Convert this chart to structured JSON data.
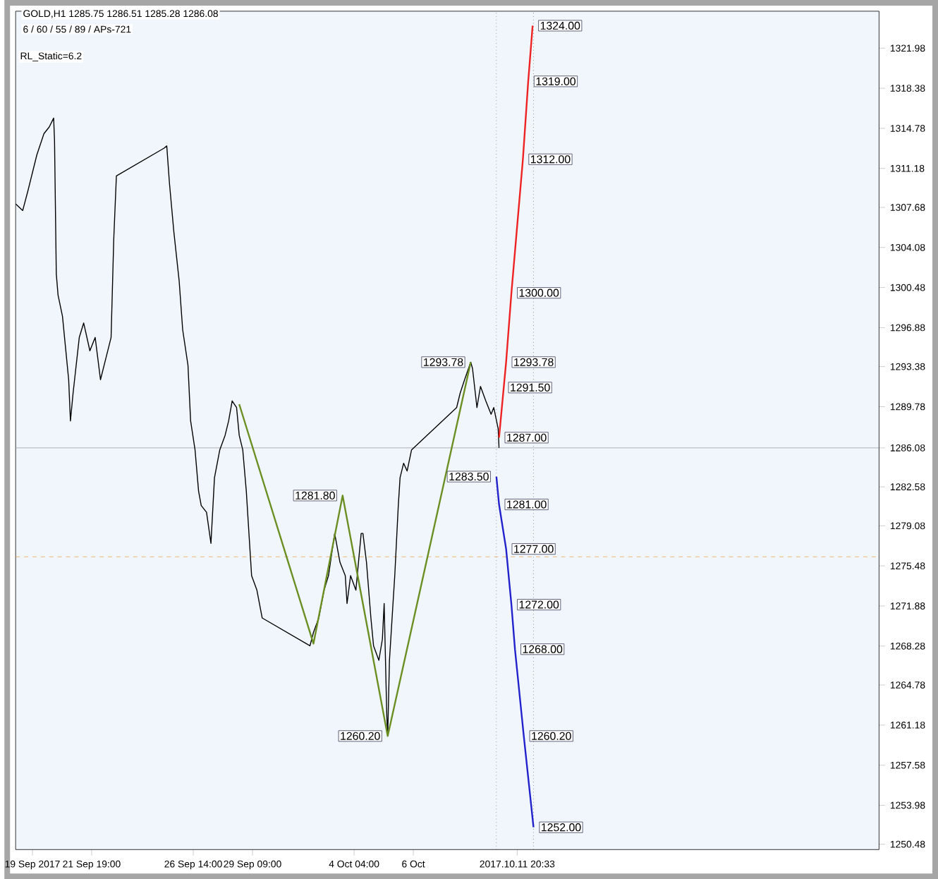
{
  "chart_data": {
    "type": "line",
    "title": "GOLD,H1 1285.75 1286.51 1285.28 1286.08",
    "subtitle": "6 / 60 / 55 / 89 / APs-721",
    "series": [
      {
        "color": "#000000",
        "x": [
          "2017-09-18T05:00",
          "2017-09-18T13:00",
          "2017-09-18T19:00",
          "2017-09-19T05:00",
          "2017-09-19T13:00",
          "2017-09-19T19:00",
          "2017-09-20T00:00",
          "2017-09-20T01:00",
          "2017-09-20T03:00",
          "2017-09-20T05:00",
          "2017-09-20T10:00",
          "2017-09-20T17:00",
          "2017-09-20T19:00",
          "2017-09-20T22:00",
          "2017-09-21T05:00",
          "2017-09-21T10:00",
          "2017-09-21T17:00",
          "2017-09-21T23:00",
          "2017-09-22T05:00",
          "2017-09-22T11:00",
          "2017-09-22T17:00",
          "2017-09-22T20:00",
          "2017-09-22T23:00",
          "2017-09-25T05:00",
          "2017-09-25T08:00",
          "2017-09-25T11:00",
          "2017-09-25T16:00",
          "2017-09-25T22:00",
          "2017-09-26T02:00",
          "2017-09-26T08:00",
          "2017-09-26T11:00",
          "2017-09-26T16:00",
          "2017-09-26T20:00",
          "2017-09-26T23:00",
          "2017-09-27T05:00",
          "2017-09-27T10:00",
          "2017-09-27T14:00",
          "2017-09-27T20:00",
          "2017-09-28T02:00",
          "2017-09-28T06:00",
          "2017-09-28T10:00",
          "2017-09-28T15:00",
          "2017-09-28T18:00",
          "2017-09-28T22:00",
          "2017-09-29T02:00",
          "2017-09-29T08:00",
          "2017-09-29T14:00",
          "2017-09-29T20:00",
          "2017-10-02T02:00",
          "2017-10-02T06:00",
          "2017-10-02T12:00",
          "2017-10-02T18:00",
          "2017-10-02T23:00",
          "2017-10-03T06:00",
          "2017-10-03T12:00",
          "2017-10-03T18:00",
          "2017-10-03T20:00",
          "2017-10-04T00:00",
          "2017-10-04T06:00",
          "2017-10-04T12:00",
          "2017-10-04T14:00",
          "2017-10-04T18:00",
          "2017-10-04T23:00",
          "2017-10-05T02:00",
          "2017-10-05T08:00",
          "2017-10-05T12:00",
          "2017-10-05T14:00",
          "2017-10-05T17:00",
          "2017-10-05T18:00",
          "2017-10-05T20:00",
          "2017-10-06T00:00",
          "2017-10-06T02:00",
          "2017-10-06T06:00",
          "2017-10-06T08:00",
          "2017-10-06T12:00",
          "2017-10-06T16:00",
          "2017-10-06T21:00",
          "2017-10-09T00:00",
          "2017-10-09T04:00",
          "2017-10-09T09:00",
          "2017-10-09T16:00",
          "2017-10-09T18:00",
          "2017-10-09T23:00",
          "2017-10-10T03:00",
          "2017-10-10T09:00",
          "2017-10-10T15:00",
          "2017-10-10T18:00",
          "2017-10-10T23:00",
          "2017-10-11T00:00"
        ],
        "values": [
          1308.0,
          1307.4,
          1309.2,
          1312.4,
          1314.3,
          1314.9,
          1315.7,
          1313.7,
          1301.7,
          1299.8,
          1297.9,
          1292.2,
          1288.5,
          1291.0,
          1296.0,
          1297.3,
          1294.8,
          1296.0,
          1292.2,
          1294.1,
          1296.0,
          1304.8,
          1310.5,
          1313.0,
          1313.2,
          1309.9,
          1305.5,
          1301.1,
          1296.7,
          1293.5,
          1288.5,
          1285.9,
          1282.2,
          1280.9,
          1280.3,
          1277.5,
          1283.4,
          1285.9,
          1287.2,
          1288.5,
          1290.3,
          1289.7,
          1287.2,
          1285.9,
          1282.2,
          1274.6,
          1273.3,
          1270.8,
          1268.3,
          1269.5,
          1270.8,
          1273.3,
          1274.6,
          1278.4,
          1275.8,
          1274.6,
          1272.1,
          1274.6,
          1273.3,
          1278.4,
          1278.4,
          1275.8,
          1270.8,
          1268.3,
          1267.0,
          1268.9,
          1272.1,
          1262.0,
          1260.2,
          1267.0,
          1272.1,
          1274.6,
          1280.9,
          1283.4,
          1284.7,
          1284.0,
          1285.9,
          1289.7,
          1291.0,
          1292.2,
          1293.78,
          1293.2,
          1289.7,
          1291.6,
          1290.3,
          1289.1,
          1289.7,
          1287.8,
          1286.08
        ]
      },
      {
        "color": "#6b8e23",
        "x": [
          "2017-09-28T18:00",
          "2017-10-02T06:00",
          "2017-10-03T15:00",
          "2017-10-05T18:00",
          "2017-10-09T16:00"
        ],
        "values": [
          1290.0,
          1268.5,
          1281.8,
          1260.2,
          1293.78
        ]
      },
      {
        "color": "#ee2222",
        "x": [
          "2017-10-11T00:00",
          "2017-10-11T08:00",
          "2017-10-11T14:00",
          "2017-10-12T03:00",
          "2017-10-12T09:00",
          "2017-10-12T14:00"
        ],
        "values": [
          1287.0,
          1293.78,
          1300.0,
          1312.0,
          1319.0,
          1324.0
        ]
      },
      {
        "color": "#2222cc",
        "x": [
          "2017-10-10T21:00",
          "2017-10-11T00:00",
          "2017-10-11T08:00",
          "2017-10-11T14:00",
          "2017-10-11T18:00",
          "2017-10-12T04:00",
          "2017-10-12T15:00"
        ],
        "values": [
          1283.5,
          1281.0,
          1277.0,
          1272.0,
          1268.0,
          1260.2,
          1252.0
        ]
      }
    ],
    "xlim": [
      "2017-09-18T05:00",
      "2017-10-28T22:00"
    ],
    "ylim": [
      1250,
      1325.3
    ],
    "xticks": [
      {
        "value": "2017-09-19T00:00",
        "label": "19 Sep 2017"
      },
      {
        "value": "2017-09-21T19:00",
        "label": "21 Sep 19:00"
      },
      {
        "value": "2017-09-26T14:00",
        "label": "26 Sep 14:00"
      },
      {
        "value": "2017-09-29T09:00",
        "label": "29 Sep 09:00"
      },
      {
        "value": "2017-10-04T04:00",
        "label": "4 Oct 04:00"
      },
      {
        "value": "2017-10-06T23:00",
        "label": "6 Oct"
      },
      {
        "value": "2017-10-11T20:33",
        "label": "2017.10.11 20:33"
      }
    ],
    "yticks": [
      1250.48,
      1253.98,
      1257.58,
      1261.18,
      1264.78,
      1268.28,
      1271.88,
      1275.48,
      1279.08,
      1282.58,
      1286.08,
      1289.78,
      1293.38,
      1296.88,
      1300.48,
      1304.08,
      1307.68,
      1311.18,
      1314.78,
      1318.38,
      1321.98
    ],
    "ref_lines": [
      {
        "axis": "y",
        "value": 1286.08,
        "color": "#a0a0a0"
      },
      {
        "axis": "y",
        "value": 1276.3,
        "color": "#f0a040",
        "line_style": "dashed"
      },
      {
        "axis": "x",
        "value": "2017-10-10T21:00",
        "color": "#606060",
        "line_style": "dotted"
      },
      {
        "axis": "x",
        "value": "2017-10-12T15:00",
        "color": "#606060",
        "line_style": "dotted"
      }
    ],
    "annotations": [
      "RL_Static=6.2",
      {
        "text": "1324.00",
        "x": "2017-10-12T14:00",
        "y": 1324.0
      },
      {
        "text": "1319.00",
        "x": "2017-10-12T09:00",
        "y": 1319.0
      },
      {
        "text": "1312.00",
        "x": "2017-10-12T03:00",
        "y": 1312.0
      },
      {
        "text": "1300.00",
        "x": "2017-10-11T14:00",
        "y": 1300.0
      },
      {
        "text": "1293.78",
        "x": "2017-10-11T08:00",
        "y": 1293.78
      },
      {
        "text": "1291.50",
        "x": "2017-10-11T04:00",
        "y": 1291.5
      },
      {
        "text": "1287.00",
        "x": "2017-10-11T00:00",
        "y": 1287.0
      },
      {
        "text": "1283.50",
        "x": "2017-10-10T21:00",
        "y": 1283.5
      },
      {
        "text": "1281.00",
        "x": "2017-10-11T00:00",
        "y": 1281.0
      },
      {
        "text": "1277.00",
        "x": "2017-10-11T08:00",
        "y": 1277.0
      },
      {
        "text": "1272.00",
        "x": "2017-10-11T14:00",
        "y": 1272.0
      },
      {
        "text": "1268.00",
        "x": "2017-10-11T18:00",
        "y": 1268.0
      },
      {
        "text": "1260.20",
        "x": "2017-10-12T04:00",
        "y": 1260.2
      },
      {
        "text": "1252.00",
        "x": "2017-10-12T15:00",
        "y": 1252.0
      },
      {
        "text": "1293.78",
        "x": "2017-10-09T16:00",
        "y": 1293.78
      },
      {
        "text": "1281.80",
        "x": "2017-10-03T15:00",
        "y": 1281.8
      },
      {
        "text": "1260.20",
        "x": "2017-10-05T18:00",
        "y": 1260.2
      }
    ],
    "grid": false,
    "marker": "none",
    "line_style": "solid"
  }
}
